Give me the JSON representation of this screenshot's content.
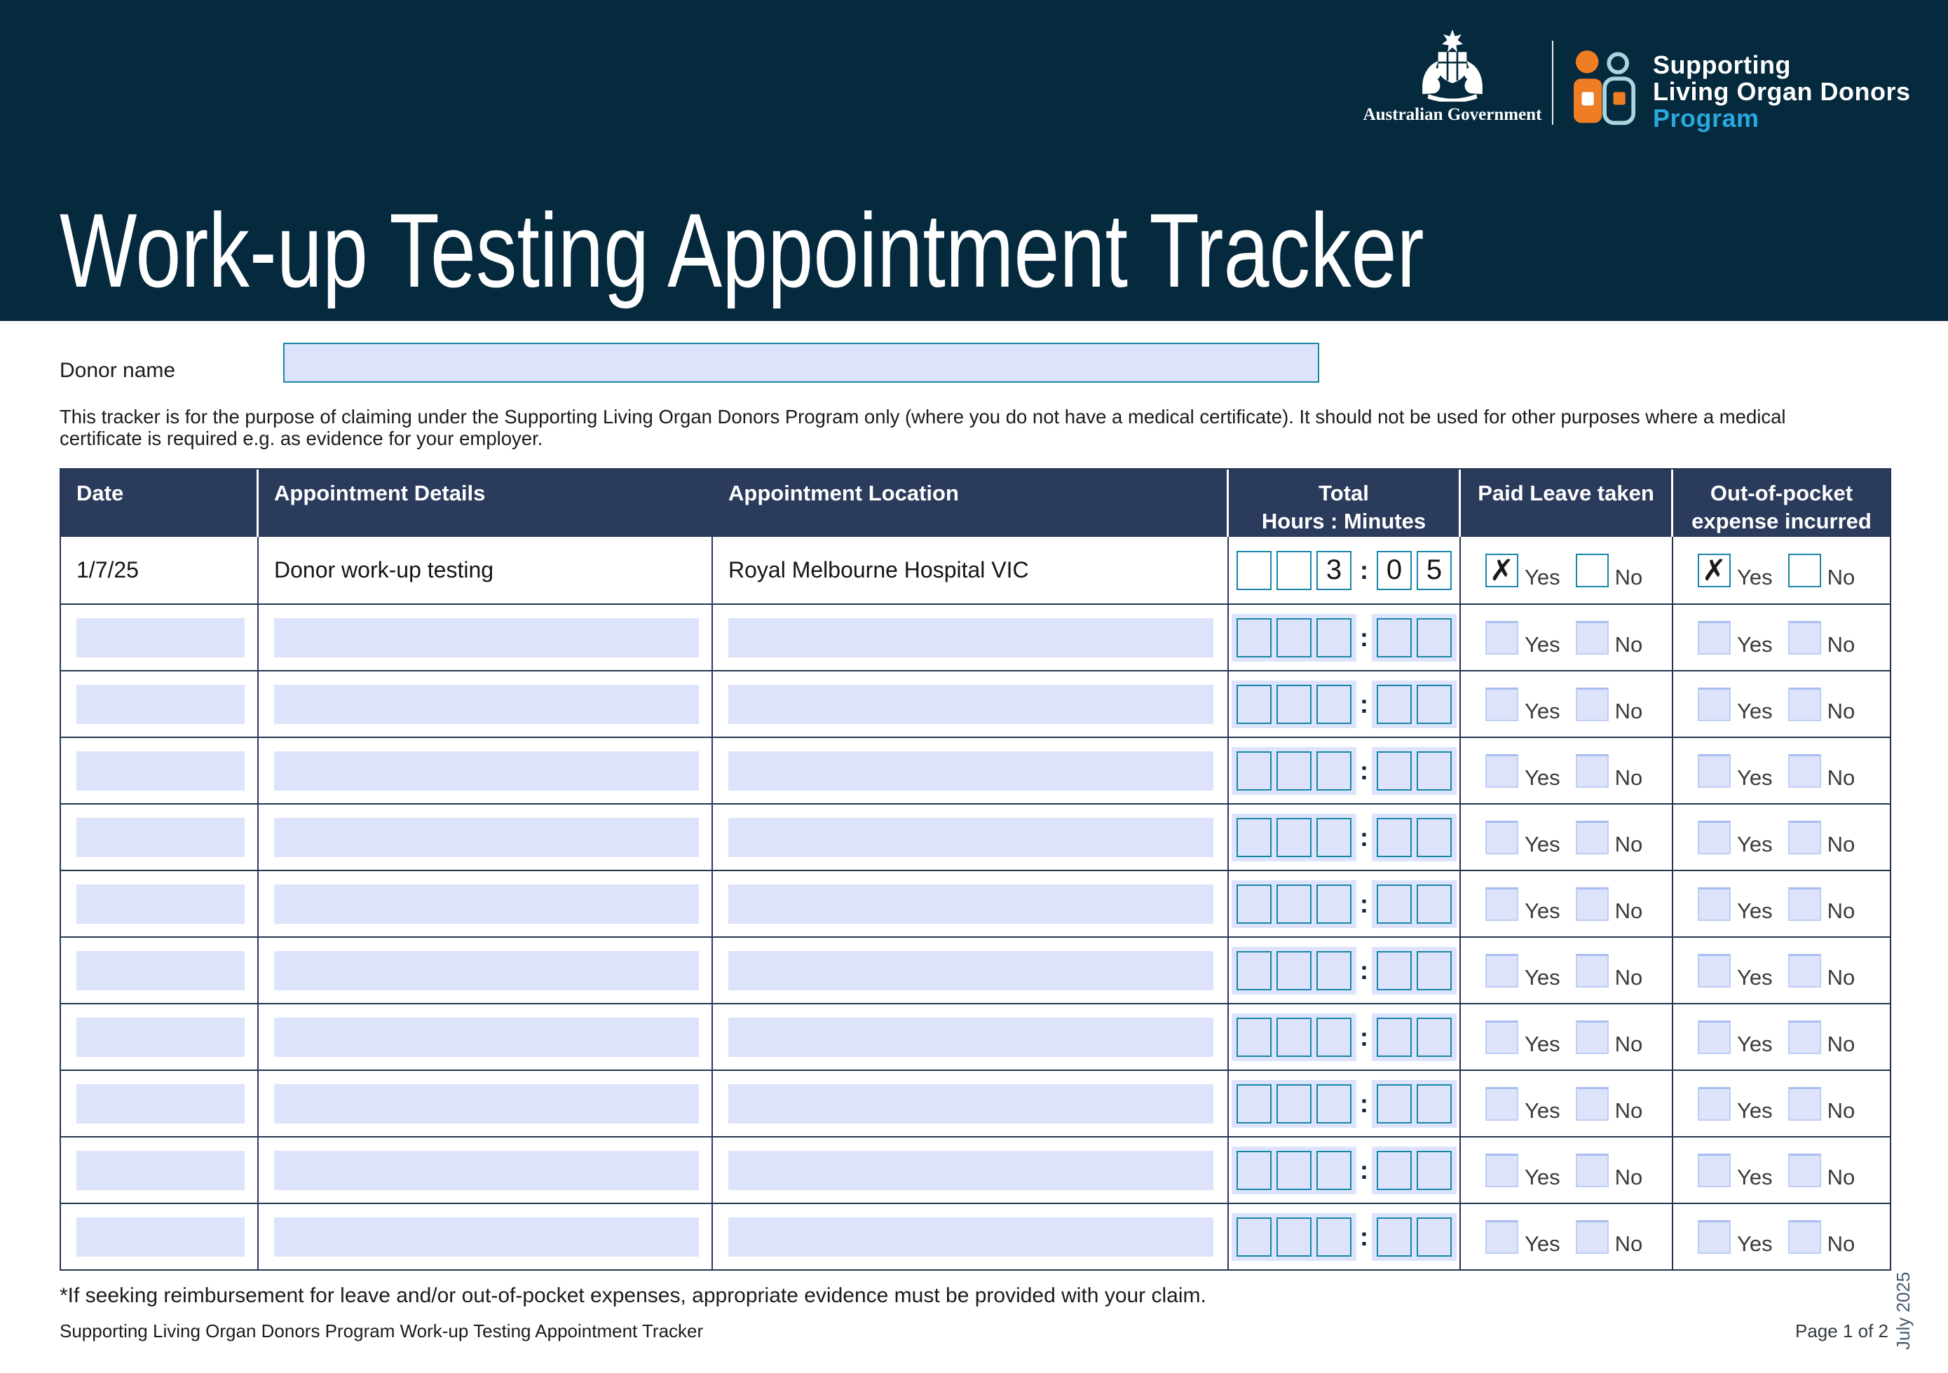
{
  "banner": {
    "title": "Work-up Testing Appointment Tracker",
    "coat_of_arms_label": "Australian Government",
    "logo": {
      "line1": "Supporting",
      "line2": "Living Organ Donors",
      "line3": "Program"
    }
  },
  "icons": {
    "coat_of_arms": "australian-coat-of-arms-icon",
    "program_logo": "two-people-logo-icon"
  },
  "donor": {
    "label": "Donor name",
    "value": ""
  },
  "intro_text": "This tracker is for the purpose of claiming under the Supporting Living Organ Donors Program only (where you do not have a medical certificate). It should not be used for other purposes where a medical certificate is required e.g. as evidence for your employer.",
  "table": {
    "headers": {
      "date": "Date",
      "details": "Appointment Details",
      "location": "Appointment Location",
      "total_line1": "Total",
      "total_line2": "Hours : Minutes",
      "paid_leave": "Paid Leave taken",
      "expense_line1": "Out-of-pocket",
      "expense_line2": "expense incurred"
    },
    "checkbox_labels": {
      "yes": "Yes",
      "no": "No"
    },
    "check_glyph": "✗",
    "time_separator": ":",
    "rows": [
      {
        "filled": true,
        "date": "1/7/25",
        "details": "Donor work-up testing",
        "location": "Royal Melbourne Hospital VIC",
        "hours": [
          "",
          "",
          "3"
        ],
        "minutes": [
          "0",
          "5"
        ],
        "paid_leave_yes": true,
        "paid_leave_no": false,
        "expense_yes": true,
        "expense_no": false
      },
      {
        "filled": false
      },
      {
        "filled": false
      },
      {
        "filled": false
      },
      {
        "filled": false
      },
      {
        "filled": false
      },
      {
        "filled": false
      },
      {
        "filled": false
      },
      {
        "filled": false
      },
      {
        "filled": false
      },
      {
        "filled": false
      }
    ]
  },
  "footer": {
    "footnote": "*If seeking reimbursement for leave and/or out-of-pocket expenses, appropriate evidence must be provided with your claim.",
    "doc_title": "Supporting Living Organ Donors Program Work-up Testing Appointment Tracker",
    "page_label": "Page 1 of 2",
    "version_label": "July 2025"
  },
  "colors": {
    "banner_navy": "#05293D",
    "table_header_navy": "#2B3B5C",
    "table_line_navy": "#253450",
    "field_blue": "#DCE3FB",
    "teal_border": "#1787A8",
    "brand_orange": "#EF7D23",
    "brand_light_teal": "#A9D5DE",
    "program_cyan": "#29A8DC"
  }
}
